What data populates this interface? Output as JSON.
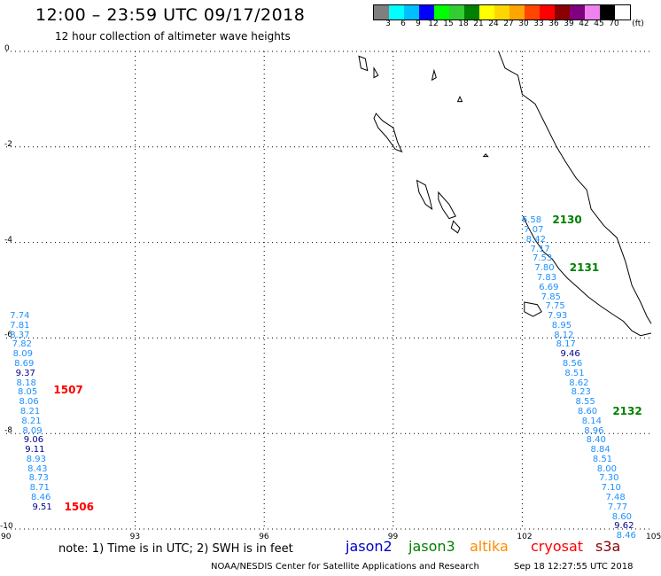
{
  "header": {
    "title": "12:00 – 23:59 UTC 09/17/2018",
    "subtitle": "12 hour collection of altimeter wave heights"
  },
  "colorbar": {
    "unit": "(ft)",
    "labels": [
      "3",
      "6",
      "9",
      "12",
      "15",
      "18",
      "21",
      "24",
      "27",
      "30",
      "33",
      "36",
      "39",
      "42",
      "45",
      "70"
    ],
    "colors": [
      "#7f7f7f",
      "#00ffff",
      "#00bfff",
      "#0000ff",
      "#00ff00",
      "#32cd32",
      "#008000",
      "#ffff00",
      "#ffd700",
      "#ffa500",
      "#ff4500",
      "#ff0000",
      "#8b0000",
      "#800080",
      "#ee82ee",
      "#000000",
      "#ffffff"
    ]
  },
  "map": {
    "lon_min": 90,
    "lon_max": 105,
    "lat_min": -10,
    "lat_max": 0,
    "x_ticks": [
      {
        "value": 90,
        "label": "90"
      },
      {
        "value": 93,
        "label": "93"
      },
      {
        "value": 96,
        "label": "96"
      },
      {
        "value": 99,
        "label": "99"
      },
      {
        "value": 102,
        "label": "102"
      },
      {
        "value": 105,
        "label": "105"
      }
    ],
    "y_ticks": [
      {
        "value": 0,
        "label": "0"
      },
      {
        "value": -2,
        "label": "-2"
      },
      {
        "value": -4,
        "label": "-4"
      },
      {
        "value": -6,
        "label": "-6"
      },
      {
        "value": -8,
        "label": "-8"
      },
      {
        "value": -10,
        "label": "-10"
      }
    ]
  },
  "tracks": [
    {
      "points": [
        {
          "lon": 90.15,
          "lat": -5.55,
          "v": "7.74",
          "color": "#1e90ff"
        },
        {
          "lon": 90.15,
          "lat": -5.75,
          "v": "7.81",
          "color": "#1e90ff"
        },
        {
          "lon": 90.15,
          "lat": -5.95,
          "v": "8.37",
          "color": "#1e90ff"
        },
        {
          "lon": 90.2,
          "lat": -6.15,
          "v": "7.82",
          "color": "#1e90ff"
        },
        {
          "lon": 90.22,
          "lat": -6.35,
          "v": "8.09",
          "color": "#1e90ff"
        },
        {
          "lon": 90.25,
          "lat": -6.55,
          "v": "8.69",
          "color": "#1e90ff"
        },
        {
          "lon": 90.28,
          "lat": -6.75,
          "v": "9.37",
          "color": "#00008b"
        },
        {
          "lon": 90.3,
          "lat": -6.95,
          "v": "8.18",
          "color": "#1e90ff"
        },
        {
          "lon": 90.33,
          "lat": -7.15,
          "v": "8.05",
          "color": "#1e90ff"
        },
        {
          "lon": 90.36,
          "lat": -7.35,
          "v": "8.06",
          "color": "#1e90ff"
        },
        {
          "lon": 90.39,
          "lat": -7.55,
          "v": "8.21",
          "color": "#1e90ff"
        },
        {
          "lon": 90.42,
          "lat": -7.75,
          "v": "8.21",
          "color": "#1e90ff"
        },
        {
          "lon": 90.44,
          "lat": -7.95,
          "v": "8.09",
          "color": "#1e90ff"
        },
        {
          "lon": 90.47,
          "lat": -8.15,
          "v": "9.06",
          "color": "#00008b"
        },
        {
          "lon": 90.5,
          "lat": -8.35,
          "v": "9.11",
          "color": "#00008b"
        },
        {
          "lon": 90.53,
          "lat": -8.55,
          "v": "8.93",
          "color": "#1e90ff"
        },
        {
          "lon": 90.56,
          "lat": -8.75,
          "v": "8.43",
          "color": "#1e90ff"
        },
        {
          "lon": 90.59,
          "lat": -8.95,
          "v": "8.73",
          "color": "#1e90ff"
        },
        {
          "lon": 90.61,
          "lat": -9.15,
          "v": "8.71",
          "color": "#1e90ff"
        },
        {
          "lon": 90.64,
          "lat": -9.35,
          "v": "8.46",
          "color": "#1e90ff"
        },
        {
          "lon": 90.67,
          "lat": -9.55,
          "v": "9.51",
          "color": "#00008b"
        }
      ],
      "time_labels": [
        {
          "lon": 91.1,
          "lat": -7.1,
          "text": "1507",
          "color": "#ff0000"
        },
        {
          "lon": 91.35,
          "lat": -9.55,
          "text": "1506",
          "color": "#ff0000"
        }
      ]
    },
    {
      "points": [
        {
          "lon": 102.05,
          "lat": -3.55,
          "v": "6.58",
          "color": "#1e90ff"
        },
        {
          "lon": 102.1,
          "lat": -3.75,
          "v": "7.07",
          "color": "#1e90ff"
        },
        {
          "lon": 102.15,
          "lat": -3.95,
          "v": "8.42",
          "color": "#1e90ff"
        },
        {
          "lon": 102.25,
          "lat": -4.15,
          "v": "7.17",
          "color": "#1e90ff"
        },
        {
          "lon": 102.3,
          "lat": -4.35,
          "v": "7.53",
          "color": "#1e90ff"
        },
        {
          "lon": 102.35,
          "lat": -4.55,
          "v": "7.80",
          "color": "#1e90ff"
        },
        {
          "lon": 102.4,
          "lat": -4.75,
          "v": "7.83",
          "color": "#1e90ff"
        },
        {
          "lon": 102.45,
          "lat": -4.95,
          "v": "6.69",
          "color": "#1e90ff"
        },
        {
          "lon": 102.5,
          "lat": -5.15,
          "v": "7.85",
          "color": "#1e90ff"
        },
        {
          "lon": 102.6,
          "lat": -5.35,
          "v": "7.75",
          "color": "#1e90ff"
        },
        {
          "lon": 102.65,
          "lat": -5.55,
          "v": "7.93",
          "color": "#1e90ff"
        },
        {
          "lon": 102.75,
          "lat": -5.75,
          "v": "8.95",
          "color": "#1e90ff"
        },
        {
          "lon": 102.8,
          "lat": -5.95,
          "v": "8.12",
          "color": "#1e90ff"
        },
        {
          "lon": 102.85,
          "lat": -6.15,
          "v": "8.17",
          "color": "#1e90ff"
        },
        {
          "lon": 102.95,
          "lat": -6.35,
          "v": "9.46",
          "color": "#00008b"
        },
        {
          "lon": 103.0,
          "lat": -6.55,
          "v": "8.56",
          "color": "#1e90ff"
        },
        {
          "lon": 103.05,
          "lat": -6.75,
          "v": "8.51",
          "color": "#1e90ff"
        },
        {
          "lon": 103.15,
          "lat": -6.95,
          "v": "8.62",
          "color": "#1e90ff"
        },
        {
          "lon": 103.2,
          "lat": -7.15,
          "v": "8.23",
          "color": "#1e90ff"
        },
        {
          "lon": 103.3,
          "lat": -7.35,
          "v": "8.55",
          "color": "#1e90ff"
        },
        {
          "lon": 103.35,
          "lat": -7.55,
          "v": "8.60",
          "color": "#1e90ff"
        },
        {
          "lon": 103.45,
          "lat": -7.75,
          "v": "8.14",
          "color": "#1e90ff"
        },
        {
          "lon": 103.5,
          "lat": -7.95,
          "v": "8.96",
          "color": "#1e90ff"
        },
        {
          "lon": 103.55,
          "lat": -8.15,
          "v": "8.40",
          "color": "#1e90ff"
        },
        {
          "lon": 103.65,
          "lat": -8.35,
          "v": "8.84",
          "color": "#1e90ff"
        },
        {
          "lon": 103.7,
          "lat": -8.55,
          "v": "8.51",
          "color": "#1e90ff"
        },
        {
          "lon": 103.8,
          "lat": -8.75,
          "v": "8.00",
          "color": "#1e90ff"
        },
        {
          "lon": 103.85,
          "lat": -8.95,
          "v": "7.30",
          "color": "#1e90ff"
        },
        {
          "lon": 103.9,
          "lat": -9.15,
          "v": "7.10",
          "color": "#1e90ff"
        },
        {
          "lon": 104.0,
          "lat": -9.35,
          "v": "7.48",
          "color": "#1e90ff"
        },
        {
          "lon": 104.05,
          "lat": -9.55,
          "v": "7.77",
          "color": "#1e90ff"
        },
        {
          "lon": 104.15,
          "lat": -9.75,
          "v": "8.60",
          "color": "#1e90ff"
        },
        {
          "lon": 104.2,
          "lat": -9.95,
          "v": "9.62",
          "color": "#00008b"
        },
        {
          "lon": 104.25,
          "lat": -10.15,
          "v": "8.46",
          "color": "#1e90ff"
        }
      ],
      "time_labels": [
        {
          "lon": 102.7,
          "lat": -3.55,
          "text": "2130",
          "color": "#008000"
        },
        {
          "lon": 103.1,
          "lat": -4.55,
          "text": "2131",
          "color": "#008000"
        },
        {
          "lon": 104.1,
          "lat": -7.55,
          "text": "2132",
          "color": "#008000"
        }
      ]
    }
  ],
  "coastline": [
    [
      101.45,
      0
    ],
    [
      101.6,
      -0.35
    ],
    [
      101.9,
      -0.5
    ],
    [
      102.0,
      -0.9
    ],
    [
      102.3,
      -1.1
    ],
    [
      102.55,
      -1.55
    ],
    [
      102.8,
      -2.0
    ],
    [
      103.0,
      -2.3
    ],
    [
      103.25,
      -2.65
    ],
    [
      103.5,
      -2.9
    ],
    [
      103.6,
      -3.3
    ],
    [
      103.9,
      -3.65
    ],
    [
      104.2,
      -3.9
    ],
    [
      104.4,
      -4.4
    ],
    [
      104.55,
      -4.9
    ],
    [
      104.75,
      -5.25
    ],
    [
      104.9,
      -5.55
    ],
    [
      105,
      -5.7
    ]
  ],
  "coastline_sw": [
    [
      102.02,
      -3.45
    ],
    [
      102.15,
      -3.7
    ],
    [
      102.3,
      -3.95
    ],
    [
      102.5,
      -4.2
    ],
    [
      102.7,
      -4.35
    ],
    [
      102.85,
      -4.55
    ],
    [
      103.05,
      -4.75
    ],
    [
      103.3,
      -4.95
    ],
    [
      103.55,
      -5.15
    ],
    [
      103.85,
      -5.35
    ],
    [
      104.1,
      -5.5
    ],
    [
      104.35,
      -5.65
    ],
    [
      104.55,
      -5.85
    ],
    [
      104.75,
      -5.95
    ],
    [
      105,
      -5.9
    ]
  ],
  "islands": [
    [
      [
        98.6,
        -1.3
      ],
      [
        98.75,
        -1.45
      ],
      [
        99.0,
        -1.6
      ],
      [
        99.1,
        -1.9
      ],
      [
        99.2,
        -2.1
      ],
      [
        99.05,
        -2.05
      ],
      [
        98.85,
        -1.8
      ],
      [
        98.65,
        -1.6
      ],
      [
        98.55,
        -1.4
      ]
    ],
    [
      [
        99.55,
        -2.7
      ],
      [
        99.75,
        -2.8
      ],
      [
        99.85,
        -3.1
      ],
      [
        99.9,
        -3.3
      ],
      [
        99.75,
        -3.2
      ],
      [
        99.6,
        -2.95
      ]
    ],
    [
      [
        100.05,
        -2.95
      ],
      [
        100.3,
        -3.2
      ],
      [
        100.45,
        -3.45
      ],
      [
        100.3,
        -3.5
      ],
      [
        100.15,
        -3.3
      ],
      [
        100.05,
        -3.1
      ]
    ],
    [
      [
        100.4,
        -3.55
      ],
      [
        100.55,
        -3.7
      ],
      [
        100.5,
        -3.8
      ],
      [
        100.35,
        -3.7
      ]
    ],
    [
      [
        102.05,
        -5.25
      ],
      [
        102.35,
        -5.3
      ],
      [
        102.45,
        -5.45
      ],
      [
        102.25,
        -5.55
      ],
      [
        102.05,
        -5.45
      ]
    ],
    [
      [
        98.2,
        -0.1
      ],
      [
        98.35,
        -0.15
      ],
      [
        98.4,
        -0.4
      ],
      [
        98.25,
        -0.35
      ]
    ],
    [
      [
        98.55,
        -0.35
      ],
      [
        98.65,
        -0.5
      ],
      [
        98.55,
        -0.55
      ]
    ],
    [
      [
        99.95,
        -0.4
      ],
      [
        100.0,
        -0.55
      ],
      [
        99.9,
        -0.6
      ]
    ],
    [
      [
        100.55,
        -0.95
      ],
      [
        100.6,
        -1.05
      ],
      [
        100.5,
        -1.05
      ]
    ],
    [
      [
        101.15,
        -2.15
      ],
      [
        101.2,
        -2.2
      ],
      [
        101.1,
        -2.2
      ]
    ]
  ],
  "missions": [
    {
      "name": "jason2",
      "color": "#0000cd"
    },
    {
      "name": "jason3",
      "color": "#008000"
    },
    {
      "name": "altika",
      "color": "#ff8c00"
    },
    {
      "name": "cryosat",
      "color": "#ff0000"
    },
    {
      "name": "s3a",
      "color": "#8b0000"
    }
  ],
  "note": "note: 1) Time is in UTC; 2) SWH is in feet",
  "footer": {
    "credit": "NOAA/NESDIS Center for Satellite Applications and Research",
    "timestamp": "Sep 18 12:27:55 UTC 2018"
  }
}
